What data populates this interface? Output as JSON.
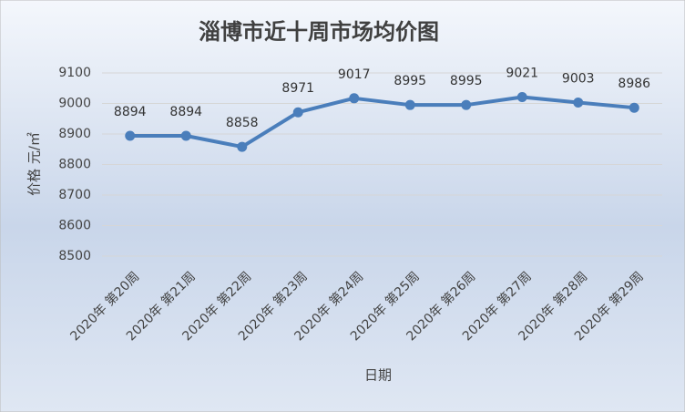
{
  "chart_data": {
    "type": "line",
    "title": "淄博市近十周市场均价图",
    "x_label": "日期",
    "y_label": "价格 元/㎡",
    "categories": [
      "2020年 第20周",
      "2020年 第21周",
      "2020年 第22周",
      "2020年 第23周",
      "2020年 第24周",
      "2020年 第25周",
      "2020年 第26周",
      "2020年 第27周",
      "2020年 第28周",
      "2020年 第29周"
    ],
    "series": [
      {
        "name": "均价",
        "color": "#4a7ebb",
        "values": [
          8894,
          8894,
          8858,
          8971,
          9017,
          8995,
          8995,
          9021,
          9003,
          8986
        ]
      }
    ],
    "ylim": [
      8500,
      9100
    ],
    "yticks": [
      8500,
      8600,
      8700,
      8800,
      8900,
      9000,
      9100
    ],
    "grid": true
  }
}
